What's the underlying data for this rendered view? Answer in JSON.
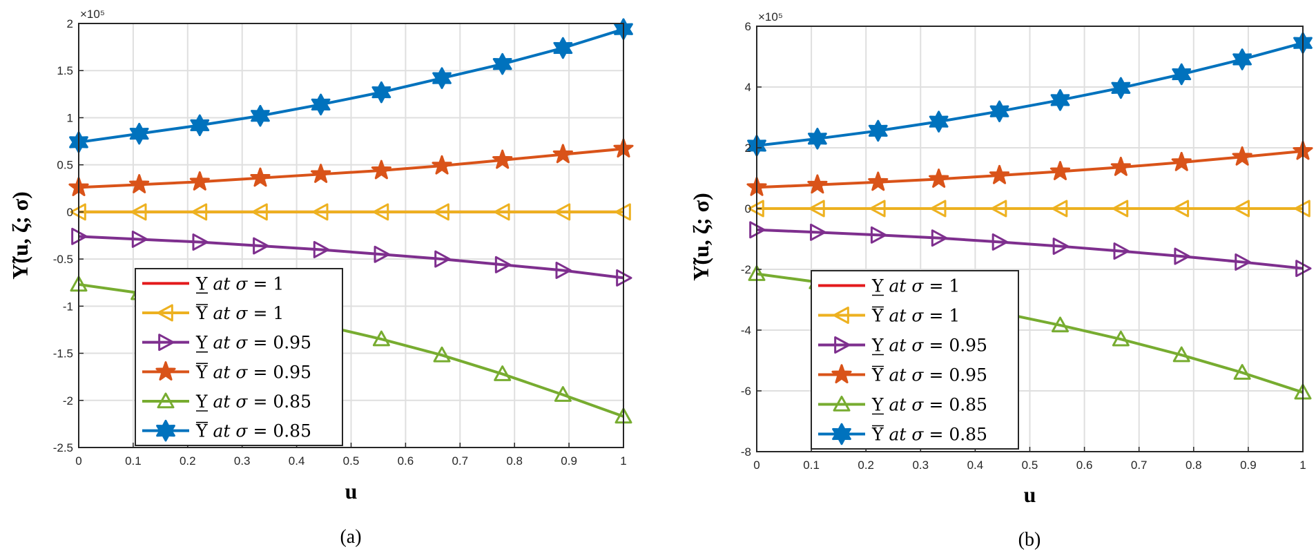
{
  "chart_data": [
    {
      "type": "line",
      "caption": "(a)",
      "xlabel": "u",
      "ylabel": "Υ̃(u, ζ; σ)",
      "y_multiplier_label": "×10⁵",
      "xlim": [
        0,
        1
      ],
      "ylim": [
        -2.5,
        2
      ],
      "xticks": [
        "0",
        "0.1",
        "0.2",
        "0.3",
        "0.4",
        "0.5",
        "0.6",
        "0.7",
        "0.8",
        "0.9",
        "1"
      ],
      "yticks": [
        -2.5,
        -2,
        -1.5,
        -1,
        -0.5,
        0,
        0.5,
        1,
        1.5,
        2
      ],
      "ytick_labels": [
        "-2.5",
        "-2",
        "-1.5",
        "-1",
        "-0.5",
        "0",
        "0.5",
        "1",
        "1.5",
        "2"
      ],
      "grid": true,
      "legend_position": "bottom-left",
      "x": [
        0,
        0.1111,
        0.2222,
        0.3333,
        0.4444,
        0.5556,
        0.6667,
        0.7778,
        0.8889,
        1
      ],
      "series": [
        {
          "name": "Υ̲ at σ = 1",
          "color": "#e31a1c",
          "marker": "none",
          "values": [
            0,
            0,
            0,
            0,
            0,
            0,
            0,
            0,
            0,
            0
          ]
        },
        {
          "name": "Ῡ at σ = 1",
          "color": "#edb120",
          "marker": "triangle-left",
          "values": [
            0,
            0,
            0,
            0,
            0,
            0,
            0,
            0,
            0,
            0
          ]
        },
        {
          "name": "Υ̲ at σ = 0.95",
          "color": "#7e2f8e",
          "marker": "triangle-right",
          "values": [
            -0.26,
            -0.29,
            -0.32,
            -0.36,
            -0.4,
            -0.45,
            -0.5,
            -0.56,
            -0.62,
            -0.7
          ]
        },
        {
          "name": "Ῡ at σ = 0.95",
          "color": "#d95319",
          "marker": "star",
          "values": [
            0.26,
            0.29,
            0.32,
            0.36,
            0.4,
            0.44,
            0.49,
            0.55,
            0.61,
            0.67
          ]
        },
        {
          "name": "Υ̲ at σ = 0.85",
          "color": "#77ac30",
          "marker": "triangle-up",
          "values": [
            -0.77,
            -0.86,
            -0.96,
            -1.07,
            -1.2,
            -1.35,
            -1.52,
            -1.72,
            -1.94,
            -2.17
          ]
        },
        {
          "name": "Ῡ at σ = 0.85",
          "color": "#0072bd",
          "marker": "hexagram",
          "values": [
            0.74,
            0.83,
            0.92,
            1.02,
            1.14,
            1.27,
            1.42,
            1.57,
            1.74,
            1.94
          ]
        }
      ]
    },
    {
      "type": "line",
      "caption": "(b)",
      "xlabel": "u",
      "ylabel": "Υ̃(u, ζ; σ)",
      "y_multiplier_label": "×10⁵",
      "xlim": [
        0,
        1
      ],
      "ylim": [
        -8,
        6
      ],
      "xticks": [
        "0",
        "0.1",
        "0.2",
        "0.3",
        "0.4",
        "0.5",
        "0.6",
        "0.7",
        "0.8",
        "0.9",
        "1"
      ],
      "yticks": [
        -8,
        -6,
        -4,
        -2,
        0,
        2,
        4,
        6
      ],
      "ytick_labels": [
        "-8",
        "-6",
        "-4",
        "-2",
        "0",
        "2",
        "4",
        "6"
      ],
      "grid": true,
      "legend_position": "bottom-left",
      "x": [
        0,
        0.1111,
        0.2222,
        0.3333,
        0.4444,
        0.5556,
        0.6667,
        0.7778,
        0.8889,
        1
      ],
      "series": [
        {
          "name": "Υ̲ at σ = 1",
          "color": "#e31a1c",
          "marker": "none",
          "values": [
            0,
            0,
            0,
            0,
            0,
            0,
            0,
            0,
            0,
            0
          ]
        },
        {
          "name": "Ῡ at σ = 1",
          "color": "#edb120",
          "marker": "triangle-left",
          "values": [
            0,
            0,
            0,
            0,
            0,
            0,
            0,
            0,
            0,
            0
          ]
        },
        {
          "name": "Υ̲ at σ = 0.95",
          "color": "#7e2f8e",
          "marker": "triangle-right",
          "values": [
            -0.7,
            -0.78,
            -0.87,
            -0.97,
            -1.1,
            -1.24,
            -1.4,
            -1.57,
            -1.76,
            -1.97
          ]
        },
        {
          "name": "Ῡ at σ = 0.95",
          "color": "#d95319",
          "marker": "star",
          "values": [
            0.7,
            0.78,
            0.87,
            0.97,
            1.09,
            1.22,
            1.36,
            1.52,
            1.7,
            1.89
          ]
        },
        {
          "name": "Υ̲ at σ = 0.85",
          "color": "#77ac30",
          "marker": "triangle-up",
          "values": [
            -2.15,
            -2.42,
            -2.72,
            -3.04,
            -3.42,
            -3.84,
            -4.3,
            -4.82,
            -5.4,
            -6.05
          ]
        },
        {
          "name": "Ῡ at σ = 0.85",
          "color": "#0072bd",
          "marker": "hexagram",
          "values": [
            2.07,
            2.3,
            2.56,
            2.86,
            3.2,
            3.57,
            3.97,
            4.42,
            4.91,
            5.45
          ]
        }
      ]
    }
  ]
}
